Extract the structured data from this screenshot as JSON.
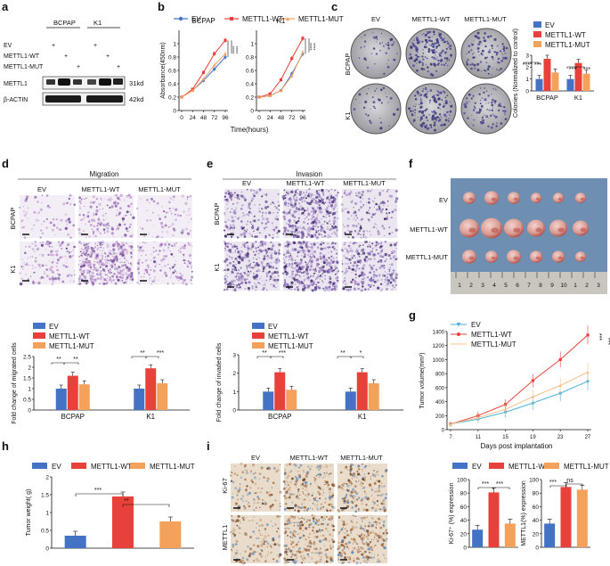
{
  "panels": {
    "a": "a",
    "b": "b",
    "c": "c",
    "d": "d",
    "e": "e",
    "f": "f",
    "g": "g",
    "h": "h",
    "i": "i"
  },
  "colors": {
    "ev": "#4472c4",
    "wt": "#e8403a",
    "mut": "#f4a15c"
  },
  "legend": {
    "ev": "EV",
    "wt": "METTL1-WT",
    "mut": "METTL1-MUT"
  },
  "panel_a": {
    "groups": [
      "BCPAP",
      "K1"
    ],
    "row_labels": [
      "EV",
      "METTL1-WT",
      "METTL1-MUT"
    ],
    "signs": [
      "+",
      "+",
      "+",
      "+",
      "+",
      "+"
    ],
    "bands": [
      "METTL1",
      "β-ACTIN"
    ],
    "kd": [
      "31kd",
      "42kd"
    ]
  },
  "panel_c": {
    "cols": [
      "EV",
      "METTL1-WT",
      "METTL1-MUT"
    ],
    "rows": [
      "BCPAP",
      "K1"
    ],
    "stars": [
      "***",
      "***",
      "***",
      "***"
    ]
  },
  "panel_d": {
    "title": "Migration",
    "cols": [
      "EV",
      "METTL1-WT",
      "METTL1-MUT"
    ],
    "rows": [
      "BCPAP",
      "K1"
    ],
    "stars": [
      "**",
      "**",
      "**",
      "***"
    ]
  },
  "panel_e": {
    "title": "Invasion",
    "cols": [
      "EV",
      "METTL1-WT",
      "METTL1-MUT"
    ],
    "rows": [
      "BCPAP",
      "K1"
    ],
    "stars": [
      "**",
      "***",
      "**",
      "*"
    ]
  },
  "panel_f": {
    "rows": [
      "EV",
      "METTL1-WT",
      "METTL1-MUT"
    ],
    "ruler": [
      "1",
      "2",
      "3",
      "4",
      "5",
      "6",
      "7",
      "8",
      "9",
      "10",
      "1",
      "2",
      "3"
    ]
  },
  "panel_g": {
    "stars": [
      "***",
      "***"
    ]
  },
  "panel_h": {
    "stars": [
      "***",
      "**"
    ]
  },
  "panel_i": {
    "cols": [
      "EV",
      "METTL1-WT",
      "METTL1-MUT"
    ],
    "rows": [
      "Ki-67",
      "METTL1"
    ],
    "stars1": [
      "***",
      "***"
    ],
    "stars2": [
      "***",
      "ns"
    ]
  },
  "chart_data": [
    {
      "id": "b-bcpap",
      "type": "line",
      "title": "BCPAP",
      "xlabel": "Time(hours)",
      "ylabel": "Absorbance(450nm)",
      "x": [
        0,
        24,
        48,
        72,
        96
      ],
      "ylim": [
        0,
        1.2
      ],
      "yticks": [
        0,
        0.2,
        0.4,
        0.6,
        0.8,
        1.0
      ],
      "stars": [
        "****",
        "****"
      ],
      "series": [
        {
          "name": "EV",
          "values": [
            0.2,
            0.3,
            0.45,
            0.62,
            0.8
          ]
        },
        {
          "name": "METTL1-WT",
          "values": [
            0.2,
            0.32,
            0.57,
            0.85,
            1.05
          ]
        },
        {
          "name": "METTL1-MUT",
          "values": [
            0.2,
            0.3,
            0.47,
            0.68,
            0.85
          ]
        }
      ]
    },
    {
      "id": "b-k1",
      "type": "line",
      "title": "K1",
      "x": [
        0,
        24,
        48,
        72,
        96
      ],
      "ylim": [
        0,
        1.2
      ],
      "yticks": [
        0,
        0.2,
        0.4,
        0.6,
        0.8,
        1.0
      ],
      "stars": [
        "****",
        "****"
      ],
      "series": [
        {
          "name": "EV",
          "values": [
            0.2,
            0.22,
            0.3,
            0.55,
            0.85
          ]
        },
        {
          "name": "METTL1-WT",
          "values": [
            0.2,
            0.25,
            0.46,
            0.78,
            1.08
          ]
        },
        {
          "name": "METTL1-MUT",
          "values": [
            0.2,
            0.22,
            0.3,
            0.52,
            0.87
          ]
        }
      ]
    },
    {
      "id": "c",
      "type": "bar",
      "ylabel": "Colonies (Normalized to control)",
      "categories": [
        "BCPAP",
        "K1"
      ],
      "ylim": [
        0,
        3
      ],
      "yticks": [
        0,
        1,
        2,
        3
      ],
      "series": [
        {
          "name": "EV",
          "values": [
            1,
            1
          ]
        },
        {
          "name": "METTL1-WT",
          "values": [
            2.7,
            2.35
          ]
        },
        {
          "name": "METTL1-MUT",
          "values": [
            1.55,
            1.45
          ]
        }
      ]
    },
    {
      "id": "d",
      "type": "bar",
      "ylabel": "Fold change of migrated cells",
      "categories": [
        "BCPAP",
        "K1"
      ],
      "ylim": [
        0,
        2.5
      ],
      "yticks": [
        0,
        0.5,
        1.0,
        1.5,
        2.0,
        2.5
      ],
      "series": [
        {
          "name": "EV",
          "values": [
            1,
            1
          ]
        },
        {
          "name": "METTL1-WT",
          "values": [
            1.6,
            1.95
          ]
        },
        {
          "name": "METTL1-MUT",
          "values": [
            1.2,
            1.25
          ]
        }
      ]
    },
    {
      "id": "e",
      "type": "bar",
      "ylabel": "Fold change of invaded cells",
      "categories": [
        "BCPAP",
        "K1"
      ],
      "ylim": [
        0,
        3
      ],
      "yticks": [
        0,
        1,
        2,
        3
      ],
      "series": [
        {
          "name": "EV",
          "values": [
            1,
            1
          ]
        },
        {
          "name": "METTL1-WT",
          "values": [
            2.05,
            2.05
          ]
        },
        {
          "name": "METTL1-MUT",
          "values": [
            1.1,
            1.45
          ]
        }
      ]
    },
    {
      "id": "g",
      "type": "line",
      "ylabel": "Tumor volume(mm³)",
      "xlabel": "Days post implantation",
      "x": [
        7,
        11,
        15,
        19,
        23,
        27
      ],
      "ylim": [
        0,
        1400
      ],
      "yticks": [
        0,
        200,
        400,
        600,
        800,
        1000,
        1200,
        1400
      ],
      "series": [
        {
          "name": "EV",
          "values": [
            80,
            150,
            250,
            380,
            520,
            690
          ]
        },
        {
          "name": "METTL1-WT",
          "values": [
            80,
            200,
            360,
            700,
            1000,
            1350
          ]
        },
        {
          "name": "METTL1-MUT",
          "values": [
            80,
            170,
            290,
            470,
            630,
            820
          ]
        }
      ]
    },
    {
      "id": "h",
      "type": "bar",
      "ylabel": "Tumor weight( g)",
      "categories": [
        "EV",
        "METTL1-WT",
        "METTL1-MUT"
      ],
      "ylim": [
        0,
        2.0
      ],
      "yticks": [
        0,
        0.5,
        1.0,
        1.5,
        2.0
      ],
      "series": [
        {
          "name": "Tumor weight",
          "values": [
            0.35,
            1.45,
            0.75
          ]
        }
      ]
    },
    {
      "id": "i1",
      "type": "bar",
      "ylabel": "Ki-67⁺ (%) expression",
      "categories": [
        "EV",
        "METTL1-WT",
        "METTL1-MUT"
      ],
      "ylim": [
        0,
        100
      ],
      "yticks": [
        0,
        20,
        40,
        60,
        80,
        100
      ],
      "series": [
        {
          "name": "Ki-67",
          "values": [
            26,
            81,
            35
          ]
        }
      ]
    },
    {
      "id": "i2",
      "type": "bar",
      "ylabel": "METTL1(%) expression",
      "categories": [
        "EV",
        "METTL1-WT",
        "METTL1-MUT"
      ],
      "ylim": [
        0,
        100
      ],
      "yticks": [
        0,
        20,
        40,
        60,
        80,
        100
      ],
      "series": [
        {
          "name": "METTL1",
          "values": [
            35,
            89,
            85
          ]
        }
      ]
    }
  ]
}
